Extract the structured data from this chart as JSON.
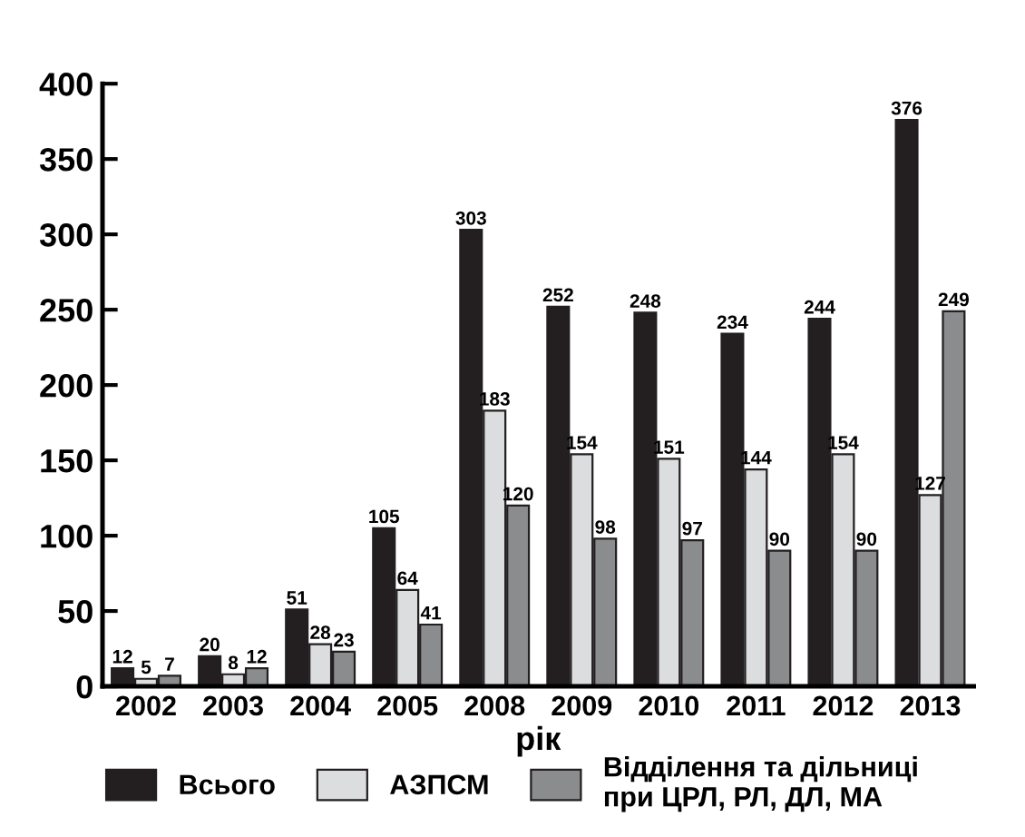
{
  "chart_data": {
    "type": "bar",
    "xlabel": "рік",
    "categories": [
      "2002",
      "2003",
      "2004",
      "2005",
      "2008",
      "2009",
      "2010",
      "2011",
      "2012",
      "2013"
    ],
    "series": [
      {
        "name": "Всього",
        "color": "#231f20",
        "values": [
          12,
          20,
          51,
          105,
          303,
          252,
          248,
          234,
          244,
          376
        ]
      },
      {
        "name": "АЗПСМ",
        "color": "#dcdddf",
        "values": [
          5,
          8,
          28,
          64,
          183,
          154,
          151,
          144,
          154,
          127
        ]
      },
      {
        "name": "Відділення та дільниці\nпри ЦРЛ, РЛ, ДЛ, МА",
        "color": "#8a8c8e",
        "values": [
          7,
          12,
          23,
          41,
          120,
          98,
          97,
          90,
          90,
          249
        ]
      }
    ],
    "ylim": [
      0,
      400
    ],
    "yticks": [
      0,
      50,
      100,
      150,
      200,
      250,
      300,
      350,
      400
    ],
    "data_labels": true,
    "grid": false,
    "legend": "bottom"
  }
}
